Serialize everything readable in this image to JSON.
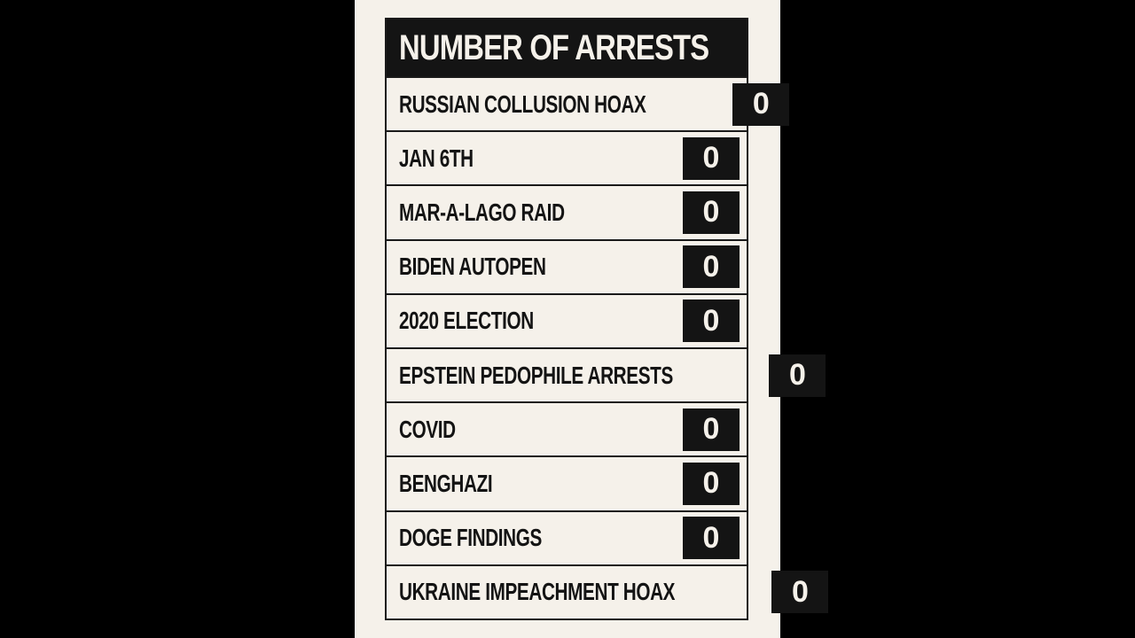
{
  "chart_data": {
    "type": "table",
    "title": "NUMBER OF ARRESTS",
    "categories": [
      "RUSSIAN COLLUSION HOAX",
      "JAN 6TH",
      "MAR-A-LAGO RAID",
      "BIDEN AUTOPEN",
      "2020 ELECTION",
      "EPSTEIN PEDOPHILE ARRESTS",
      "COVID",
      "BENGHAZI",
      "DOGE FINDINGS",
      "UKRAINE IMPEACHMENT HOAX"
    ],
    "values": [
      0,
      0,
      0,
      0,
      0,
      0,
      0,
      0,
      0,
      0
    ]
  },
  "title": "NUMBER OF ARRESTS",
  "rows": [
    {
      "label": "RUSSIAN COLLUSION HOAX",
      "value": "0"
    },
    {
      "label": "JAN 6TH",
      "value": "0"
    },
    {
      "label": "MAR-A-LAGO RAID",
      "value": "0"
    },
    {
      "label": "BIDEN AUTOPEN",
      "value": "0"
    },
    {
      "label": "2020 ELECTION",
      "value": "0"
    },
    {
      "label": "EPSTEIN PEDOPHILE ARRESTS",
      "value": "0"
    },
    {
      "label": "COVID",
      "value": "0"
    },
    {
      "label": "BENGHAZI",
      "value": "0"
    },
    {
      "label": "DOGE FINDINGS",
      "value": "0"
    },
    {
      "label": "UKRAINE IMPEACHMENT HOAX",
      "value": "0"
    }
  ]
}
